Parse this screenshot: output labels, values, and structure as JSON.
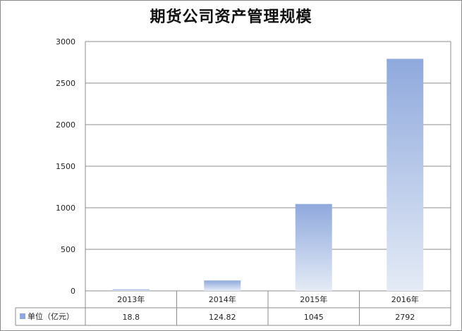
{
  "chart_data": {
    "type": "bar",
    "title": "期货公司资产管理规模",
    "categories": [
      "2013年",
      "2014年",
      "2015年",
      "2016年"
    ],
    "series": [
      {
        "name": "单位（亿元）",
        "values": [
          18.8,
          124.82,
          1045,
          2792
        ],
        "labels": [
          "18.8",
          "124.82",
          "1045",
          "2792"
        ]
      }
    ],
    "ylim": [
      0,
      3000
    ],
    "yticks": [
      "0",
      "500",
      "1000",
      "1500",
      "2000",
      "2500",
      "3000"
    ],
    "grid": true,
    "legend": "data-table",
    "colors": {
      "bar_top": "#8fa9dd",
      "bar_bottom": "#e4ebf6",
      "grid": "#8c8c8c"
    }
  }
}
